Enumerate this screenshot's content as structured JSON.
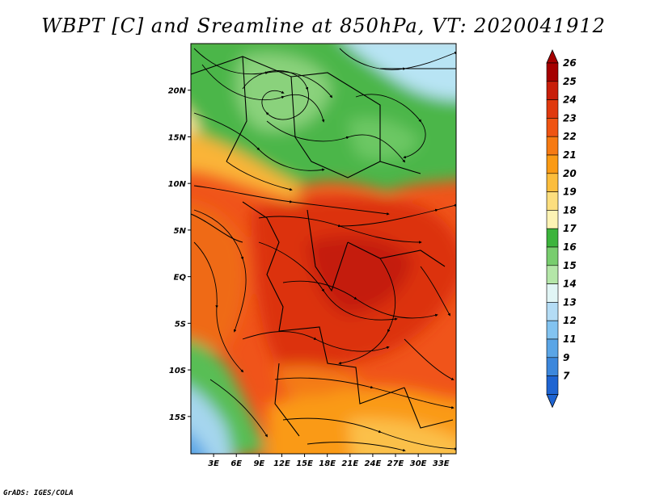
{
  "title": "WBPT [C] and Sreamline at 850hPa, VT: 2020041912",
  "credit": "GrADS: IGES/COLA",
  "map": {
    "lon_range": [
      0,
      35
    ],
    "lat_range": [
      -19,
      25
    ],
    "lat_ticks": [
      {
        "value": 20,
        "label": "20N"
      },
      {
        "value": 15,
        "label": "15N"
      },
      {
        "value": 10,
        "label": "10N"
      },
      {
        "value": 5,
        "label": "5N"
      },
      {
        "value": 0,
        "label": "EQ"
      },
      {
        "value": -5,
        "label": "5S"
      },
      {
        "value": -10,
        "label": "10S"
      },
      {
        "value": -15,
        "label": "15S"
      }
    ],
    "lon_ticks": [
      {
        "value": 3,
        "label": "3E"
      },
      {
        "value": 6,
        "label": "6E"
      },
      {
        "value": 9,
        "label": "9E"
      },
      {
        "value": 12,
        "label": "12E"
      },
      {
        "value": 15,
        "label": "15E"
      },
      {
        "value": 18,
        "label": "18E"
      },
      {
        "value": 21,
        "label": "21E"
      },
      {
        "value": 24,
        "label": "24E"
      },
      {
        "value": 27,
        "label": "27E"
      },
      {
        "value": 30,
        "label": "30E"
      },
      {
        "value": 33,
        "label": "33E"
      }
    ]
  },
  "colorbar": {
    "levels": [
      {
        "label": "26",
        "color": "#a50000"
      },
      {
        "label": "25",
        "color": "#c81e0a"
      },
      {
        "label": "24",
        "color": "#e0390e"
      },
      {
        "label": "23",
        "color": "#ef5412"
      },
      {
        "label": "22",
        "color": "#f67a12"
      },
      {
        "label": "21",
        "color": "#fa9a14"
      },
      {
        "label": "20",
        "color": "#fbbd3c"
      },
      {
        "label": "19",
        "color": "#fcde7e"
      },
      {
        "label": "18",
        "color": "#fdf3b4"
      },
      {
        "label": "17",
        "color": "#3cb43c"
      },
      {
        "label": "16",
        "color": "#78cd6e"
      },
      {
        "label": "15",
        "color": "#b4e6a8"
      },
      {
        "label": "14",
        "color": "#e1f5f5"
      },
      {
        "label": "13",
        "color": "#b4dcf5"
      },
      {
        "label": "12",
        "color": "#82c3f0"
      },
      {
        "label": "11",
        "color": "#5aa5e6"
      },
      {
        "label": "9",
        "color": "#3c87dc"
      },
      {
        "label": "7",
        "color": "#1e64d2"
      }
    ],
    "top_color": "#a50000",
    "bottom_color": "#1e64d2"
  }
}
